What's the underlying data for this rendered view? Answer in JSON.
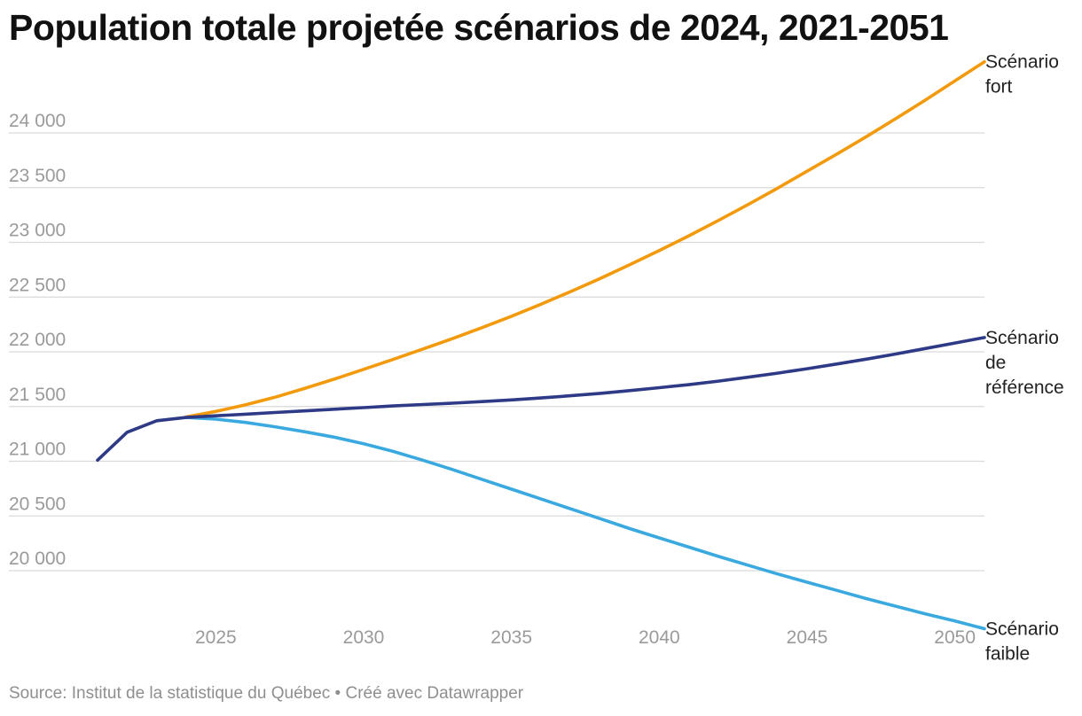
{
  "chart_data": {
    "type": "line",
    "title": "Population totale projetée scénarios de 2024, 2021-2051",
    "xlabel": "",
    "ylabel": "",
    "xlim": [
      2021,
      2051
    ],
    "ylim": [
      19700,
      24500
    ],
    "y_ticks": [
      20000,
      20500,
      21000,
      21500,
      22000,
      22500,
      23000,
      23500,
      24000
    ],
    "y_tick_labels": [
      "20 000",
      "20 500",
      "21 000",
      "21 500",
      "22 000",
      "22 500",
      "23 000",
      "23 500",
      "24 000"
    ],
    "x_ticks": [
      2025,
      2030,
      2035,
      2040,
      2045,
      2050
    ],
    "x_tick_labels": [
      "2025",
      "2030",
      "2035",
      "2040",
      "2045",
      "2050"
    ],
    "grid": "horizontal",
    "legend": "direct labels at line ends (right)",
    "series": [
      {
        "name": "Scénario fort",
        "label_lines": [
          "Scénario",
          "fort"
        ],
        "color": "#f29a0c",
        "x": [
          2024,
          2025,
          2026,
          2027,
          2028,
          2029,
          2030,
          2031,
          2032,
          2033,
          2034,
          2035,
          2036,
          2037,
          2038,
          2039,
          2040,
          2041,
          2042,
          2043,
          2044,
          2045,
          2046,
          2047,
          2048,
          2049,
          2050,
          2051
        ],
        "values": [
          21405,
          21455,
          21515,
          21585,
          21665,
          21750,
          21840,
          21930,
          22025,
          22120,
          22220,
          22325,
          22435,
          22550,
          22670,
          22795,
          22925,
          23060,
          23200,
          23345,
          23495,
          23650,
          23805,
          23965,
          24130,
          24300,
          24475,
          24650
        ]
      },
      {
        "name": "Scénario de référence",
        "label_lines": [
          "Scénario",
          "de",
          "référence"
        ],
        "color": "#2e3a85",
        "x": [
          2021,
          2022,
          2023,
          2024,
          2025,
          2026,
          2027,
          2028,
          2029,
          2030,
          2031,
          2032,
          2033,
          2034,
          2035,
          2036,
          2037,
          2038,
          2039,
          2040,
          2041,
          2042,
          2043,
          2044,
          2045,
          2046,
          2047,
          2048,
          2049,
          2050,
          2051
        ],
        "values": [
          21010,
          21265,
          21370,
          21400,
          21415,
          21430,
          21445,
          21460,
          21475,
          21490,
          21505,
          21518,
          21530,
          21545,
          21560,
          21578,
          21598,
          21620,
          21645,
          21672,
          21700,
          21732,
          21768,
          21805,
          21845,
          21888,
          21933,
          21980,
          22030,
          22080,
          22130
        ]
      },
      {
        "name": "Scénario faible",
        "label_lines": [
          "Scénario",
          "faible"
        ],
        "color": "#3aa9e0",
        "x": [
          2024,
          2025,
          2026,
          2027,
          2028,
          2029,
          2030,
          2031,
          2032,
          2033,
          2034,
          2035,
          2036,
          2037,
          2038,
          2039,
          2040,
          2041,
          2042,
          2043,
          2044,
          2045,
          2046,
          2047,
          2048,
          2049,
          2050,
          2051
        ],
        "values": [
          21400,
          21385,
          21355,
          21315,
          21270,
          21220,
          21160,
          21090,
          21010,
          20925,
          20835,
          20745,
          20655,
          20565,
          20475,
          20385,
          20300,
          20215,
          20130,
          20050,
          19970,
          19895,
          19820,
          19745,
          19675,
          19605,
          19540,
          19470
        ]
      }
    ]
  },
  "footer": {
    "source": "Source: Institut de la statistique du Québec • Créé avec Datawrapper"
  }
}
